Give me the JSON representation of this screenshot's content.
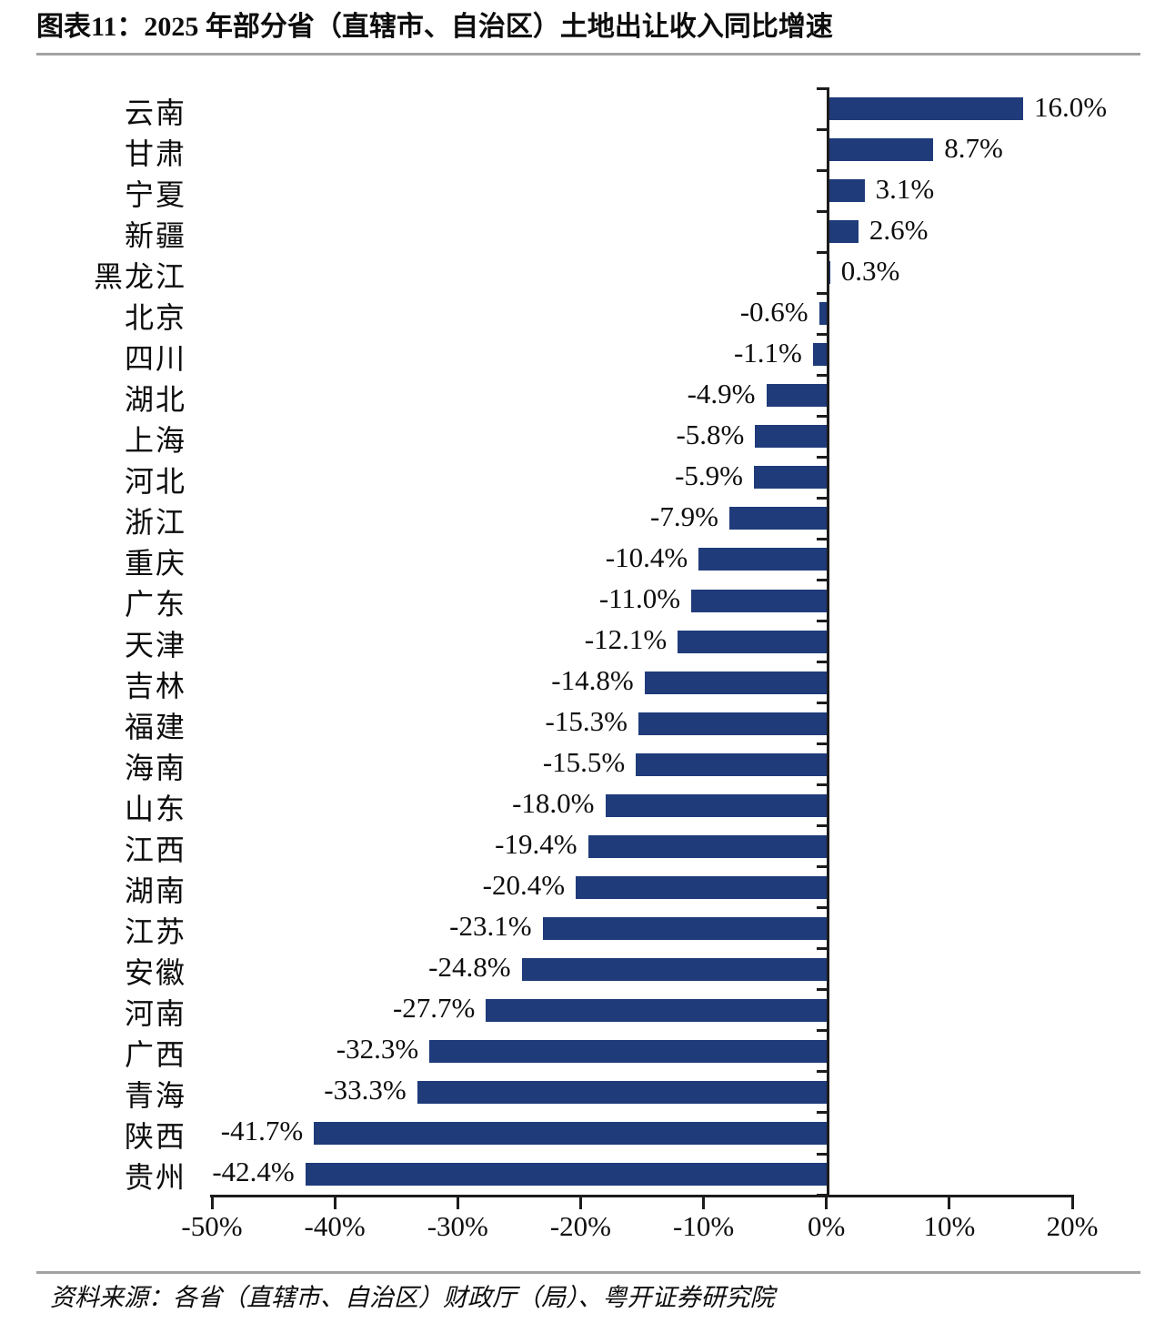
{
  "title": "图表11：2025 年部分省（直辖市、自治区）土地出让收入同比增速",
  "source": "资料来源：各省（直辖市、自治区）财政厅（局）、粤开证券研究院",
  "colors": {
    "bar": "#1f3b7a",
    "axis": "#1c1c1c",
    "divider": "#a2a2a2",
    "text": "#0d0d0d",
    "background": "#ffffff"
  },
  "chart_data": {
    "type": "bar",
    "orientation": "horizontal",
    "title": "2025 年部分省（直辖市、自治区）土地出让收入同比增速",
    "categories": [
      "云南",
      "甘肃",
      "宁夏",
      "新疆",
      "黑龙江",
      "北京",
      "四川",
      "湖北",
      "上海",
      "河北",
      "浙江",
      "重庆",
      "广东",
      "天津",
      "吉林",
      "福建",
      "海南",
      "山东",
      "江西",
      "湖南",
      "江苏",
      "安徽",
      "河南",
      "广西",
      "青海",
      "陕西",
      "贵州"
    ],
    "values": [
      16.0,
      8.7,
      3.1,
      2.6,
      0.3,
      -0.6,
      -1.1,
      -4.9,
      -5.8,
      -5.9,
      -7.9,
      -10.4,
      -11.0,
      -12.1,
      -14.8,
      -15.3,
      -15.5,
      -18.0,
      -19.4,
      -20.4,
      -23.1,
      -24.8,
      -27.7,
      -32.3,
      -33.3,
      -41.7,
      -42.4
    ],
    "value_labels": [
      "16.0%",
      "8.7%",
      "3.1%",
      "2.6%",
      "0.3%",
      "-0.6%",
      "-1.1%",
      "-4.9%",
      "-5.8%",
      "-5.9%",
      "-7.9%",
      "-10.4%",
      "-11.0%",
      "-12.1%",
      "-14.8%",
      "-15.3%",
      "-15.5%",
      "-18.0%",
      "-19.4%",
      "-20.4%",
      "-23.1%",
      "-24.8%",
      "-27.7%",
      "-32.3%",
      "-33.3%",
      "-41.7%",
      "-42.4%"
    ],
    "x_tick_labels": [
      "-50%",
      "-40%",
      "-30%",
      "-20%",
      "-10%",
      "0%",
      "10%",
      "20%"
    ],
    "x_tick_values": [
      -50,
      -40,
      -30,
      -20,
      -10,
      0,
      10,
      20
    ],
    "xlim": [
      -50,
      20
    ],
    "xlabel": "",
    "ylabel": "",
    "grid": false,
    "legend": "none",
    "data_labels": true
  }
}
